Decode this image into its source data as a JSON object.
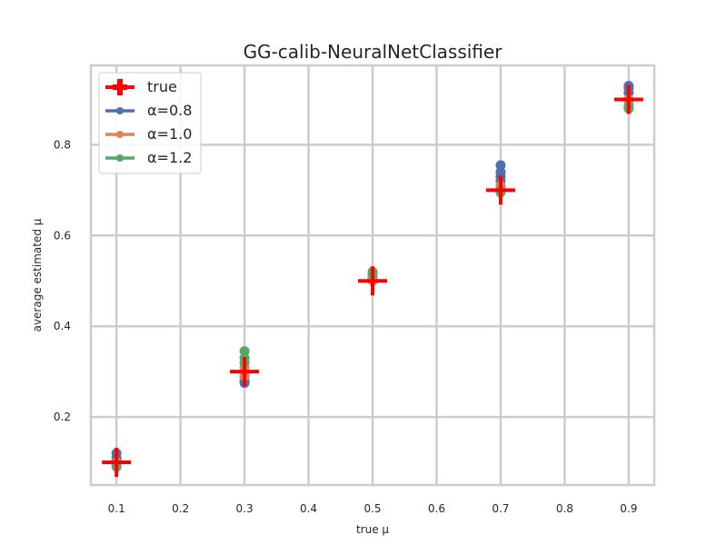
{
  "chart_data": {
    "type": "scatter",
    "title": "GG-calib-NeuralNetClassifier",
    "xlabel": "true μ",
    "ylabel": "average estimated μ",
    "xlim": [
      0.06,
      0.94
    ],
    "ylim": [
      0.05,
      0.975
    ],
    "xticks": [
      0.1,
      0.2,
      0.3,
      0.4,
      0.5,
      0.6,
      0.7,
      0.8,
      0.9
    ],
    "yticks": [
      0.2,
      0.4,
      0.6,
      0.8
    ],
    "grid": true,
    "legend_position": "top-left",
    "series": [
      {
        "name": "true",
        "marker": "plus",
        "color": "#ff0000",
        "x": [
          0.1,
          0.3,
          0.5,
          0.7,
          0.9
        ],
        "y": [
          0.1,
          0.3,
          0.5,
          0.7,
          0.9
        ]
      },
      {
        "name": "α=0.8",
        "marker": "dot",
        "color": "#4c72b0",
        "x": [
          0.1,
          0.1,
          0.1,
          0.3,
          0.3,
          0.3,
          0.5,
          0.5,
          0.7,
          0.7,
          0.7,
          0.7,
          0.9,
          0.9,
          0.9
        ],
        "y": [
          0.12,
          0.11,
          0.105,
          0.275,
          0.28,
          0.29,
          0.51,
          0.505,
          0.755,
          0.74,
          0.73,
          0.72,
          0.93,
          0.925,
          0.915
        ]
      },
      {
        "name": "α=1.0",
        "marker": "dot",
        "color": "#dd8452",
        "x": [
          0.1,
          0.1,
          0.3,
          0.3,
          0.3,
          0.5,
          0.5,
          0.7,
          0.7,
          0.9,
          0.9
        ],
        "y": [
          0.1,
          0.098,
          0.29,
          0.3,
          0.31,
          0.5,
          0.51,
          0.705,
          0.71,
          0.9,
          0.895
        ]
      },
      {
        "name": "α=1.2",
        "marker": "dot",
        "color": "#55a868",
        "x": [
          0.1,
          0.1,
          0.3,
          0.3,
          0.3,
          0.5,
          0.5,
          0.7,
          0.7,
          0.9,
          0.9
        ],
        "y": [
          0.095,
          0.09,
          0.345,
          0.33,
          0.32,
          0.52,
          0.515,
          0.7,
          0.695,
          0.88,
          0.885
        ]
      }
    ]
  }
}
